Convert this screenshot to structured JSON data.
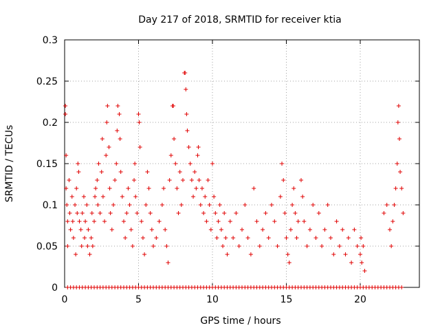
{
  "chart_data": {
    "type": "scatter",
    "title": "Day 217 of 2018, SRMTID for receiver ktia",
    "xlabel": "GPS time / hours",
    "ylabel": "SRMTID / TECUs",
    "xlim": [
      0,
      24
    ],
    "ylim": [
      0,
      0.3
    ],
    "x_ticks": [
      0,
      5,
      10,
      15,
      20
    ],
    "x_tick_labels": [
      "0",
      "5",
      "10",
      "15",
      "20"
    ],
    "y_ticks": [
      0,
      0.05,
      0.1,
      0.15,
      0.2,
      0.25,
      0.3
    ],
    "y_tick_labels": [
      "0",
      "0.05",
      "0.1",
      "0.15",
      "0.2",
      "0.25",
      "0.3"
    ],
    "grid": true,
    "marker": "plus",
    "color": "#e00000",
    "series": [
      {
        "name": "SRMTID",
        "points": [
          [
            0.05,
            0.22
          ],
          [
            0.05,
            0.21
          ],
          [
            0.1,
            0.16
          ],
          [
            0.1,
            0.12
          ],
          [
            0.15,
            0.1
          ],
          [
            0.2,
            0.08
          ],
          [
            0.2,
            0.05
          ],
          [
            0.3,
            0.13
          ],
          [
            0.35,
            0.09
          ],
          [
            0.4,
            0.07
          ],
          [
            0.5,
            0.11
          ],
          [
            0.55,
            0.08
          ],
          [
            0.6,
            0.06
          ],
          [
            0.7,
            0.1
          ],
          [
            0.75,
            0.04
          ],
          [
            0.8,
            0.12
          ],
          [
            0.85,
            0.09
          ],
          [
            0.9,
            0.15
          ],
          [
            0.95,
            0.14
          ],
          [
            1.0,
            0.08
          ],
          [
            1.1,
            0.07
          ],
          [
            1.15,
            0.05
          ],
          [
            1.2,
            0.09
          ],
          [
            1.3,
            0.11
          ],
          [
            1.35,
            0.06
          ],
          [
            1.4,
            0.08
          ],
          [
            1.5,
            0.1
          ],
          [
            1.55,
            0.05
          ],
          [
            1.6,
            0.07
          ],
          [
            1.7,
            0.04
          ],
          [
            1.8,
            0.06
          ],
          [
            1.85,
            0.09
          ],
          [
            1.9,
            0.05
          ],
          [
            2.0,
            0.08
          ],
          [
            2.05,
            0.11
          ],
          [
            2.1,
            0.12
          ],
          [
            2.2,
            0.13
          ],
          [
            2.25,
            0.1
          ],
          [
            2.3,
            0.15
          ],
          [
            2.4,
            0.09
          ],
          [
            2.5,
            0.14
          ],
          [
            2.55,
            0.18
          ],
          [
            2.6,
            0.11
          ],
          [
            2.7,
            0.08
          ],
          [
            2.8,
            0.16
          ],
          [
            2.85,
            0.2
          ],
          [
            2.9,
            0.22
          ],
          [
            3.0,
            0.17
          ],
          [
            3.05,
            0.12
          ],
          [
            3.1,
            0.09
          ],
          [
            3.2,
            0.07
          ],
          [
            3.3,
            0.1
          ],
          [
            3.4,
            0.13
          ],
          [
            3.5,
            0.15
          ],
          [
            3.55,
            0.19
          ],
          [
            3.6,
            0.22
          ],
          [
            3.7,
            0.21
          ],
          [
            3.75,
            0.18
          ],
          [
            3.8,
            0.14
          ],
          [
            3.9,
            0.11
          ],
          [
            4.0,
            0.08
          ],
          [
            4.1,
            0.06
          ],
          [
            4.2,
            0.09
          ],
          [
            4.3,
            0.12
          ],
          [
            4.4,
            0.1
          ],
          [
            4.5,
            0.07
          ],
          [
            4.6,
            0.05
          ],
          [
            4.7,
            0.13
          ],
          [
            4.75,
            0.15
          ],
          [
            4.8,
            0.11
          ],
          [
            4.9,
            0.09
          ],
          [
            5.0,
            0.21
          ],
          [
            5.05,
            0.2
          ],
          [
            5.1,
            0.17
          ],
          [
            5.2,
            0.08
          ],
          [
            5.3,
            0.06
          ],
          [
            5.4,
            0.04
          ],
          [
            5.5,
            0.1
          ],
          [
            5.6,
            0.14
          ],
          [
            5.7,
            0.12
          ],
          [
            5.8,
            0.09
          ],
          [
            5.9,
            0.07
          ],
          [
            6.0,
            0.05
          ],
          [
            6.2,
            0.06
          ],
          [
            6.4,
            0.08
          ],
          [
            6.6,
            0.1
          ],
          [
            6.7,
            0.12
          ],
          [
            6.8,
            0.07
          ],
          [
            6.9,
            0.05
          ],
          [
            7.0,
            0.03
          ],
          [
            7.1,
            0.13
          ],
          [
            7.2,
            0.16
          ],
          [
            7.3,
            0.22
          ],
          [
            7.35,
            0.22
          ],
          [
            7.4,
            0.18
          ],
          [
            7.5,
            0.15
          ],
          [
            7.6,
            0.12
          ],
          [
            7.7,
            0.09
          ],
          [
            7.8,
            0.14
          ],
          [
            7.9,
            0.1
          ],
          [
            8.0,
            0.13
          ],
          [
            8.1,
            0.26
          ],
          [
            8.15,
            0.26
          ],
          [
            8.2,
            0.24
          ],
          [
            8.25,
            0.21
          ],
          [
            8.3,
            0.19
          ],
          [
            8.4,
            0.17
          ],
          [
            8.5,
            0.15
          ],
          [
            8.6,
            0.13
          ],
          [
            8.7,
            0.11
          ],
          [
            8.8,
            0.14
          ],
          [
            8.9,
            0.12
          ],
          [
            9.0,
            0.16
          ],
          [
            9.05,
            0.17
          ],
          [
            9.1,
            0.13
          ],
          [
            9.2,
            0.1
          ],
          [
            9.3,
            0.12
          ],
          [
            9.4,
            0.09
          ],
          [
            9.5,
            0.11
          ],
          [
            9.6,
            0.08
          ],
          [
            9.7,
            0.13
          ],
          [
            9.8,
            0.1
          ],
          [
            9.9,
            0.07
          ],
          [
            10.0,
            0.15
          ],
          [
            10.1,
            0.11
          ],
          [
            10.2,
            0.09
          ],
          [
            10.3,
            0.06
          ],
          [
            10.4,
            0.08
          ],
          [
            10.5,
            0.1
          ],
          [
            10.6,
            0.07
          ],
          [
            10.7,
            0.05
          ],
          [
            10.8,
            0.09
          ],
          [
            10.9,
            0.06
          ],
          [
            11.0,
            0.04
          ],
          [
            11.2,
            0.08
          ],
          [
            11.4,
            0.06
          ],
          [
            11.6,
            0.09
          ],
          [
            11.8,
            0.05
          ],
          [
            12.0,
            0.07
          ],
          [
            12.2,
            0.1
          ],
          [
            12.4,
            0.06
          ],
          [
            12.6,
            0.04
          ],
          [
            12.8,
            0.12
          ],
          [
            13.0,
            0.08
          ],
          [
            13.2,
            0.05
          ],
          [
            13.4,
            0.07
          ],
          [
            13.6,
            0.09
          ],
          [
            13.8,
            0.06
          ],
          [
            14.0,
            0.1
          ],
          [
            14.2,
            0.08
          ],
          [
            14.4,
            0.05
          ],
          [
            14.6,
            0.11
          ],
          [
            14.7,
            0.15
          ],
          [
            14.8,
            0.13
          ],
          [
            14.9,
            0.09
          ],
          [
            15.0,
            0.06
          ],
          [
            15.1,
            0.04
          ],
          [
            15.2,
            0.03
          ],
          [
            15.3,
            0.07
          ],
          [
            15.4,
            0.1
          ],
          [
            15.5,
            0.12
          ],
          [
            15.6,
            0.09
          ],
          [
            15.7,
            0.06
          ],
          [
            15.8,
            0.08
          ],
          [
            16.0,
            0.13
          ],
          [
            16.1,
            0.11
          ],
          [
            16.2,
            0.08
          ],
          [
            16.4,
            0.05
          ],
          [
            16.6,
            0.07
          ],
          [
            16.8,
            0.1
          ],
          [
            17.0,
            0.06
          ],
          [
            17.2,
            0.09
          ],
          [
            17.4,
            0.05
          ],
          [
            17.6,
            0.07
          ],
          [
            17.8,
            0.1
          ],
          [
            18.0,
            0.06
          ],
          [
            18.2,
            0.04
          ],
          [
            18.4,
            0.08
          ],
          [
            18.6,
            0.05
          ],
          [
            18.8,
            0.07
          ],
          [
            19.0,
            0.04
          ],
          [
            19.2,
            0.06
          ],
          [
            19.4,
            0.03
          ],
          [
            19.6,
            0.07
          ],
          [
            19.8,
            0.05
          ],
          [
            20.0,
            0.04
          ],
          [
            20.05,
            0.06
          ],
          [
            20.1,
            0.03
          ],
          [
            20.2,
            0.05
          ],
          [
            20.3,
            0.02
          ],
          [
            21.6,
            0.09
          ],
          [
            21.8,
            0.1
          ],
          [
            22.0,
            0.07
          ],
          [
            22.1,
            0.05
          ],
          [
            22.2,
            0.08
          ],
          [
            22.3,
            0.1
          ],
          [
            22.4,
            0.12
          ],
          [
            22.5,
            0.15
          ],
          [
            22.55,
            0.2
          ],
          [
            22.6,
            0.22
          ],
          [
            22.65,
            0.18
          ],
          [
            22.7,
            0.14
          ],
          [
            22.8,
            0.12
          ],
          [
            22.9,
            0.09
          ]
        ]
      }
    ],
    "zero_points_x": [
      0.2,
      0.4,
      0.6,
      0.8,
      1.0,
      1.2,
      1.4,
      1.6,
      1.8,
      2.0,
      2.2,
      2.4,
      2.6,
      2.8,
      3.0,
      3.2,
      3.4,
      3.6,
      3.8,
      4.0,
      4.2,
      4.4,
      4.6,
      4.8,
      5.0,
      5.2,
      5.4,
      5.6,
      5.8,
      6.0,
      6.2,
      6.4,
      6.6,
      6.8,
      7.0,
      7.2,
      7.4,
      7.6,
      7.8,
      8.0,
      8.2,
      8.4,
      8.6,
      8.8,
      9.0,
      9.2,
      9.4,
      9.6,
      9.8,
      10.0,
      10.2,
      10.4,
      10.6,
      10.8,
      11.0,
      11.2,
      11.4,
      11.6,
      11.8,
      12.0,
      12.2,
      12.4,
      12.6,
      12.8,
      13.0,
      13.2,
      13.4,
      13.6,
      13.8,
      14.0,
      14.2,
      14.4,
      14.6,
      14.8,
      15.0,
      15.2,
      15.4,
      15.6,
      15.8,
      16.0,
      16.2,
      16.4,
      16.6,
      16.8,
      17.0,
      17.2,
      17.4,
      17.6,
      17.8,
      18.0,
      18.2,
      18.4,
      18.6,
      18.8,
      19.0,
      19.2,
      19.4,
      19.6,
      19.8,
      20.0,
      20.2,
      20.4,
      20.6,
      20.8,
      21.0,
      21.2,
      21.4,
      21.6,
      21.8,
      22.0,
      22.2,
      22.4,
      22.6,
      22.8
    ]
  }
}
